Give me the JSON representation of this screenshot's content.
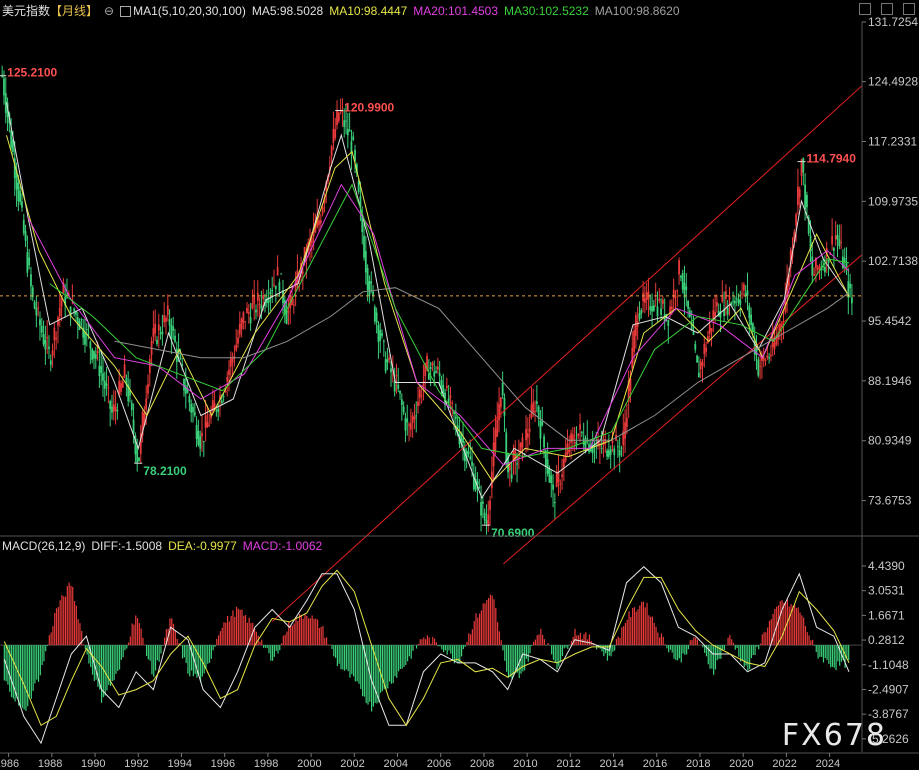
{
  "header": {
    "title": "美元指数",
    "period": "【月线】",
    "ma_label": "MA1(5,10,20,30,100)",
    "ma5": "MA5:98.5028",
    "ma10": "MA10:98.4447",
    "ma20": "MA20:101.4503",
    "ma30": "MA30:102.5232",
    "ma100": "MA100:98.8620"
  },
  "macd_header": {
    "name": "MACD(26,12,9)",
    "diff": "DIFF:-1.5008",
    "dea": "DEA:-0.9977",
    "macd": "MACD:-1.0062"
  },
  "watermark": "FX678",
  "colors": {
    "up": "#e83a3a",
    "down": "#3ad07a",
    "ma5": "#e0e0e0",
    "ma10": "#e6e64a",
    "ma20": "#e040e0",
    "ma30": "#3ad03a",
    "ma100": "#909090",
    "channel": "#e82020",
    "ref": "#e6a040"
  },
  "chart_data": [
    {
      "type": "line",
      "title": "美元指数【月线】",
      "y_axis_labels": [
        "131.7254",
        "124.4928",
        "117.2331",
        "109.9735",
        "102.7138",
        "95.4542",
        "88.1946",
        "80.9349",
        "73.6753"
      ],
      "ylim": [
        69.5,
        131.7254
      ],
      "x_axis_labels": [
        "1986",
        "1988",
        "1990",
        "1992",
        "1994",
        "1996",
        "1998",
        "2000",
        "2002",
        "2004",
        "2006",
        "2008",
        "2010",
        "2012",
        "2014",
        "2016",
        "2018",
        "2020",
        "2022",
        "2024"
      ],
      "xlim": [
        1985.7,
        2025.6
      ],
      "annotations": [
        {
          "label": "125.2100",
          "x": 1985.8,
          "y": 125.21
        },
        {
          "label": "78.2100",
          "x": 1992.1,
          "y": 78.21
        },
        {
          "label": "120.9900",
          "x": 2001.4,
          "y": 120.99
        },
        {
          "label": "70.6900",
          "x": 2008.2,
          "y": 70.69
        },
        {
          "label": "114.7940",
          "x": 2022.8,
          "y": 114.794
        }
      ],
      "series": [
        {
          "x": [
            1985.8,
            1986.5,
            1987.2,
            1988.0,
            1988.6,
            1989.5,
            1990.3,
            1990.9,
            1991.5,
            1992.1,
            1992.7,
            1993.5,
            1994.2,
            1995.0,
            1995.3,
            1996.0,
            1997.0,
            1997.8,
            1998.6,
            1999.0,
            1999.8,
            2000.5,
            2001.0,
            2001.4,
            2002.0,
            2002.7,
            2003.5,
            2004.0,
            2004.6,
            2005.5,
            2006.0,
            2006.8,
            2007.5,
            2008.2,
            2008.9,
            2009.2,
            2009.9,
            2010.5,
            2011.3,
            2012.0,
            2012.5,
            2013.3,
            2014.0,
            2014.5,
            2015.2,
            2016.0,
            2016.6,
            2017.2,
            2018.0,
            2018.8,
            2019.5,
            2020.2,
            2020.8,
            2021.5,
            2022.0,
            2022.8,
            2023.3,
            2023.9,
            2024.4,
            2024.8,
            2025.1
          ],
          "y": [
            125.21,
            112.0,
            98.0,
            91.0,
            99.0,
            95.0,
            90.0,
            84.0,
            89.0,
            78.21,
            93.0,
            96.0,
            88.0,
            81.0,
            83.0,
            87.0,
            96.0,
            98.0,
            101.0,
            96.0,
            103.0,
            108.0,
            116.0,
            120.99,
            117.0,
            101.0,
            91.0,
            88.0,
            82.0,
            90.0,
            89.0,
            83.0,
            78.0,
            70.69,
            88.0,
            77.0,
            80.0,
            86.0,
            74.0,
            80.0,
            82.0,
            80.0,
            80.5,
            80.0,
            97.0,
            98.0,
            96.0,
            102.0,
            89.0,
            97.0,
            98.0,
            99.0,
            90.0,
            92.0,
            97.0,
            114.794,
            101.0,
            103.0,
            106.0,
            102.0,
            97.5
          ]
        },
        {
          "name": "MA5",
          "x": [
            1986.0,
            1987.0,
            1988.0,
            1989.5,
            1991.0,
            1992.1,
            1993.5,
            1995.0,
            1996.5,
            1998.0,
            1999.5,
            2001.0,
            2001.5,
            2002.8,
            2004.0,
            2006.0,
            2008.0,
            2009.5,
            2011.5,
            2013.5,
            2015.0,
            2016.5,
            2018.0,
            2019.5,
            2020.8,
            2022.0,
            2022.8,
            2023.8,
            2025.0
          ],
          "y": [
            122.0,
            108.0,
            95.0,
            97.0,
            88.0,
            80.0,
            94.0,
            84.0,
            86.0,
            98.0,
            100.0,
            114.0,
            118.0,
            105.0,
            88.0,
            88.0,
            74.0,
            80.0,
            77.0,
            81.0,
            95.0,
            96.0,
            94.0,
            97.5,
            92.0,
            98.0,
            110.0,
            103.0,
            98.5
          ]
        },
        {
          "name": "MA10",
          "x": [
            1986.0,
            1987.5,
            1989.0,
            1991.0,
            1992.5,
            1994.0,
            1995.5,
            1997.5,
            1999.5,
            2001.2,
            2002.0,
            2003.5,
            2005.0,
            2007.0,
            2008.5,
            2010.0,
            2012.0,
            2014.0,
            2015.5,
            2017.0,
            2018.5,
            2020.0,
            2021.0,
            2022.5,
            2023.5,
            2025.0
          ],
          "y": [
            118.0,
            104.0,
            96.0,
            90.0,
            84.0,
            92.0,
            84.0,
            94.0,
            101.0,
            114.0,
            116.0,
            100.0,
            88.0,
            82.0,
            76.0,
            80.0,
            79.0,
            81.0,
            94.0,
            97.0,
            93.0,
            97.0,
            91.0,
            100.0,
            106.0,
            98.4
          ]
        },
        {
          "name": "MA20",
          "x": [
            1987.0,
            1989.0,
            1991.0,
            1993.0,
            1995.0,
            1997.0,
            1999.0,
            2001.5,
            2003.0,
            2005.0,
            2007.0,
            2009.0,
            2011.0,
            2013.0,
            2015.0,
            2017.0,
            2019.0,
            2021.0,
            2022.5,
            2024.0,
            2025.0
          ],
          "y": [
            108.0,
            98.0,
            91.0,
            90.0,
            86.0,
            89.0,
            98.0,
            112.0,
            106.0,
            88.0,
            84.0,
            78.0,
            80.0,
            80.0,
            91.0,
            97.0,
            95.0,
            91.0,
            101.0,
            104.0,
            101.5
          ]
        },
        {
          "name": "MA30",
          "x": [
            1988.0,
            1990.0,
            1992.0,
            1994.0,
            1996.0,
            1998.0,
            2000.0,
            2002.0,
            2004.0,
            2006.0,
            2008.0,
            2010.0,
            2012.0,
            2014.0,
            2016.0,
            2018.0,
            2020.0,
            2021.5,
            2023.0,
            2024.0,
            2025.0
          ],
          "y": [
            100.0,
            96.0,
            91.0,
            89.0,
            87.0,
            92.0,
            102.0,
            112.0,
            97.0,
            87.0,
            80.0,
            79.0,
            80.0,
            82.0,
            92.0,
            96.0,
            95.0,
            93.0,
            99.0,
            103.0,
            102.5
          ]
        },
        {
          "name": "MA100",
          "x": [
            1991.0,
            1993.0,
            1995.0,
            1997.0,
            1999.0,
            2001.0,
            2002.5,
            2004.0,
            2006.0,
            2008.0,
            2010.0,
            2012.0,
            2014.0,
            2016.0,
            2018.0,
            2020.0,
            2022.0,
            2024.0,
            2025.0
          ],
          "y": [
            93.0,
            92.0,
            91.0,
            91.0,
            93.0,
            96.0,
            99.0,
            99.5,
            97.0,
            91.0,
            85.0,
            81.0,
            81.0,
            84.0,
            88.0,
            91.0,
            94.0,
            97.0,
            98.9
          ]
        }
      ],
      "channel_lines": [
        {
          "x": [
            1998.3,
            2025.6
          ],
          "y": [
            59.0,
            124.0
          ]
        },
        {
          "x": [
            2009.0,
            2025.6
          ],
          "y": [
            66.0,
            103.5
          ]
        }
      ],
      "reference_line": {
        "y": 98.5
      }
    },
    {
      "type": "bar",
      "title": "MACD(26,12,9)",
      "y_axis_labels": [
        "4.4390",
        "3.0531",
        "1.6671",
        "0.2812",
        "-1.1048",
        "-2.4907",
        "-3.8767",
        "-5.2626"
      ],
      "ylim": [
        -6.0,
        5.0
      ],
      "series": [
        {
          "name": "MACD",
          "x": [
            1985.9,
            1986.8,
            1987.6,
            1988.3,
            1989.0,
            1989.7,
            1990.4,
            1991.2,
            1992.0,
            1992.8,
            1993.6,
            1994.4,
            1995.1,
            1995.9,
            1996.7,
            1997.5,
            1998.3,
            1999.1,
            1999.9,
            2000.6,
            2001.3,
            2002.1,
            2002.9,
            2003.7,
            2004.5,
            2005.3,
            2006.1,
            2006.9,
            2007.7,
            2008.5,
            2009.2,
            2009.9,
            2010.7,
            2011.5,
            2012.3,
            2013.1,
            2013.9,
            2014.7,
            2015.5,
            2016.3,
            2017.1,
            2017.9,
            2018.7,
            2019.5,
            2020.3,
            2021.1,
            2021.9,
            2022.7,
            2023.5,
            2024.3,
            2025.0
          ],
          "y": [
            -2.0,
            -3.8,
            -1.5,
            2.0,
            3.5,
            -0.5,
            -3.0,
            -1.5,
            1.8,
            -1.8,
            1.5,
            -1.5,
            -2.0,
            1.0,
            2.0,
            1.0,
            -1.0,
            1.2,
            1.8,
            1.0,
            -1.0,
            -2.0,
            -3.5,
            -2.2,
            -1.0,
            0.5,
            0.0,
            -1.0,
            1.5,
            3.0,
            -2.0,
            -1.5,
            1.0,
            -1.2,
            0.8,
            0.3,
            -0.8,
            1.5,
            2.5,
            0.5,
            -1.0,
            0.5,
            -1.5,
            0.5,
            -1.5,
            0.8,
            2.5,
            2.0,
            -0.5,
            -1.2,
            -1.0
          ]
        },
        {
          "name": "DIFF",
          "x": [
            1985.9,
            1986.8,
            1987.6,
            1988.3,
            1989.0,
            1989.7,
            1990.4,
            1991.2,
            1992.0,
            1992.8,
            1993.6,
            1994.4,
            1995.1,
            1995.9,
            1996.7,
            1997.5,
            1998.3,
            1999.1,
            1999.9,
            2000.6,
            2001.3,
            2002.1,
            2002.9,
            2003.7,
            2004.5,
            2005.3,
            2006.1,
            2006.9,
            2007.7,
            2008.5,
            2009.2,
            2009.9,
            2010.7,
            2011.5,
            2012.3,
            2013.1,
            2013.9,
            2014.7,
            2015.5,
            2016.3,
            2017.1,
            2017.9,
            2018.7,
            2019.5,
            2020.3,
            2021.1,
            2021.9,
            2022.7,
            2023.5,
            2024.3,
            2025.0
          ],
          "y": [
            -0.8,
            -4.0,
            -5.5,
            -3.0,
            -0.5,
            0.5,
            -2.5,
            -3.5,
            -1.5,
            -2.5,
            1.0,
            0.3,
            -2.5,
            -3.5,
            -1.5,
            1.0,
            2.0,
            1.0,
            2.5,
            4.0,
            4.0,
            2.0,
            -2.0,
            -4.5,
            -4.5,
            -1.5,
            -0.5,
            -1.0,
            -1.0,
            -1.5,
            -2.5,
            -0.5,
            -0.8,
            -1.5,
            0.3,
            0.1,
            -0.3,
            3.5,
            4.4,
            3.5,
            1.0,
            0.5,
            -0.5,
            -0.5,
            -1.5,
            -1.0,
            2.0,
            4.0,
            1.0,
            0.5,
            -1.5
          ]
        },
        {
          "name": "DEA",
          "x": [
            1985.9,
            1986.8,
            1987.6,
            1988.3,
            1989.0,
            1989.7,
            1990.4,
            1991.2,
            1992.0,
            1992.8,
            1993.6,
            1994.4,
            1995.1,
            1995.9,
            1996.7,
            1997.5,
            1998.3,
            1999.1,
            1999.9,
            2000.6,
            2001.3,
            2002.1,
            2002.9,
            2003.7,
            2004.5,
            2005.3,
            2006.1,
            2006.9,
            2007.7,
            2008.5,
            2009.2,
            2009.9,
            2010.7,
            2011.5,
            2012.3,
            2013.1,
            2013.9,
            2014.7,
            2015.5,
            2016.3,
            2017.1,
            2017.9,
            2018.7,
            2019.5,
            2020.3,
            2021.1,
            2021.9,
            2022.7,
            2023.5,
            2024.3,
            2025.0
          ],
          "y": [
            0.2,
            -2.2,
            -4.5,
            -4.0,
            -2.0,
            -0.2,
            -1.2,
            -2.8,
            -2.5,
            -2.0,
            -0.5,
            0.5,
            -1.0,
            -3.0,
            -2.5,
            0.0,
            1.5,
            1.3,
            1.8,
            3.3,
            4.2,
            3.0,
            0.0,
            -3.0,
            -4.5,
            -3.0,
            -1.0,
            -0.8,
            -1.5,
            -1.3,
            -1.8,
            -1.2,
            -0.8,
            -1.0,
            -0.5,
            -0.1,
            -0.1,
            2.0,
            3.8,
            3.8,
            2.0,
            0.8,
            0.0,
            -0.5,
            -1.0,
            -1.2,
            0.5,
            3.0,
            2.0,
            0.8,
            -1.0
          ]
        }
      ],
      "x_axis_labels": [
        "1986",
        "1988",
        "1990",
        "1992",
        "1994",
        "1996",
        "1998",
        "2000",
        "2002",
        "2004",
        "2006",
        "2008",
        "2010",
        "2012",
        "2014",
        "2016",
        "2018",
        "2020",
        "2022",
        "2024"
      ]
    }
  ]
}
